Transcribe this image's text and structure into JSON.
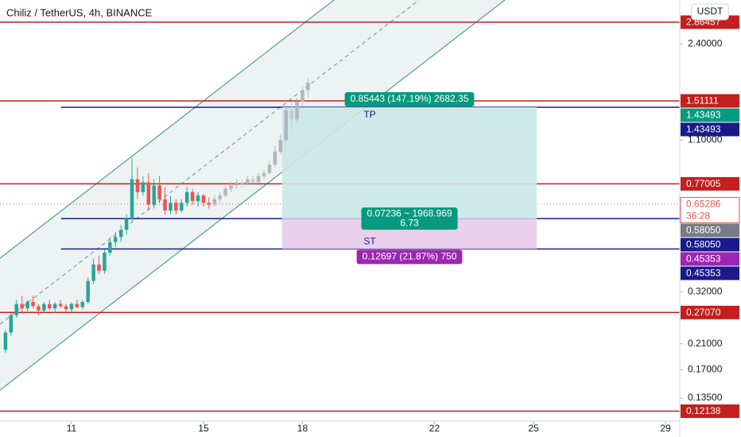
{
  "chart_data": {
    "type": "candlestick",
    "title": "Chiliz / TetherUS, 4h, BINANCE",
    "currency": "USDT",
    "log_scale": true,
    "ylim": [
      0.112,
      3.43
    ],
    "yticks": [
      {
        "value": 2.4,
        "label": "2.40000"
      },
      {
        "value": 1.1,
        "label": "1.10000"
      },
      {
        "value": 0.32,
        "label": "0.32000"
      },
      {
        "value": 0.21,
        "label": "0.21000"
      },
      {
        "value": 0.17,
        "label": "0.17000"
      },
      {
        "value": 0.135,
        "label": "0.13500"
      }
    ],
    "xlim": [
      -1,
      122.6
    ],
    "xticks": [
      {
        "value": 12,
        "label": "11"
      },
      {
        "value": 36,
        "label": "15"
      },
      {
        "value": 54,
        "label": "18"
      },
      {
        "value": 78,
        "label": "22"
      },
      {
        "value": 96,
        "label": "25"
      },
      {
        "value": 120,
        "label": "29"
      }
    ],
    "series": [
      {
        "color_up": "#26a69a",
        "color_down": "#ef5350",
        "x": [
          0,
          1,
          2,
          3,
          4,
          5,
          6,
          7,
          8,
          9,
          10,
          11,
          12,
          13,
          14,
          15,
          16,
          17,
          18,
          19,
          20,
          21,
          22,
          23,
          24,
          25,
          26,
          27,
          28,
          29,
          30,
          31,
          32,
          33,
          34,
          35,
          36,
          37
        ],
        "open": [
          0.2,
          0.23,
          0.265,
          0.29,
          0.28,
          0.295,
          0.285,
          0.275,
          0.29,
          0.28,
          0.29,
          0.285,
          0.278,
          0.29,
          0.283,
          0.295,
          0.35,
          0.4,
          0.38,
          0.44,
          0.48,
          0.5,
          0.53,
          0.58,
          0.8,
          0.72,
          0.78,
          0.65,
          0.76,
          0.68,
          0.62,
          0.66,
          0.62,
          0.66,
          0.72,
          0.67,
          0.7,
          0.66
        ],
        "high": [
          0.235,
          0.27,
          0.3,
          0.31,
          0.3,
          0.31,
          0.29,
          0.295,
          0.3,
          0.295,
          0.3,
          0.29,
          0.295,
          0.3,
          0.3,
          0.36,
          0.42,
          0.43,
          0.45,
          0.5,
          0.52,
          0.55,
          0.6,
          0.95,
          0.88,
          0.82,
          0.84,
          0.8,
          0.82,
          0.75,
          0.7,
          0.68,
          0.68,
          0.75,
          0.74,
          0.72,
          0.71,
          0.69
        ],
        "low": [
          0.195,
          0.225,
          0.26,
          0.27,
          0.27,
          0.28,
          0.265,
          0.27,
          0.275,
          0.27,
          0.28,
          0.27,
          0.272,
          0.28,
          0.278,
          0.29,
          0.34,
          0.37,
          0.37,
          0.43,
          0.46,
          0.48,
          0.51,
          0.57,
          0.68,
          0.7,
          0.62,
          0.63,
          0.66,
          0.6,
          0.6,
          0.6,
          0.61,
          0.64,
          0.65,
          0.64,
          0.64,
          0.63
        ],
        "close": [
          0.23,
          0.265,
          0.29,
          0.28,
          0.295,
          0.285,
          0.275,
          0.29,
          0.28,
          0.29,
          0.285,
          0.278,
          0.29,
          0.283,
          0.295,
          0.35,
          0.4,
          0.38,
          0.44,
          0.48,
          0.5,
          0.53,
          0.58,
          0.8,
          0.72,
          0.78,
          0.65,
          0.76,
          0.68,
          0.62,
          0.66,
          0.62,
          0.66,
          0.72,
          0.67,
          0.7,
          0.66,
          0.65
        ]
      },
      {
        "color_up": "#b2b5be",
        "color_down": "#c7c9cf",
        "x": [
          38,
          39,
          40,
          41,
          42,
          43,
          44,
          45,
          46,
          47,
          48,
          49,
          50,
          51,
          52,
          53,
          54,
          55
        ],
        "open": [
          0.65,
          0.68,
          0.7,
          0.74,
          0.76,
          0.78,
          0.77,
          0.8,
          0.78,
          0.82,
          0.84,
          0.9,
          1.0,
          1.1,
          1.4,
          1.3,
          1.5,
          1.65
        ],
        "high": [
          0.7,
          0.72,
          0.76,
          0.78,
          0.8,
          0.8,
          0.82,
          0.82,
          0.84,
          0.86,
          0.93,
          1.05,
          1.15,
          1.45,
          1.5,
          1.55,
          1.7,
          1.82
        ],
        "low": [
          0.64,
          0.66,
          0.69,
          0.72,
          0.74,
          0.75,
          0.76,
          0.77,
          0.77,
          0.8,
          0.83,
          0.88,
          0.98,
          1.08,
          1.2,
          1.28,
          1.45,
          1.55
        ],
        "close": [
          0.68,
          0.7,
          0.74,
          0.76,
          0.78,
          0.77,
          0.8,
          0.78,
          0.82,
          0.84,
          0.9,
          1.0,
          1.1,
          1.4,
          1.3,
          1.5,
          1.65,
          1.75
        ]
      }
    ],
    "levels": [
      {
        "value": 2.86457,
        "color": "#c41e1e"
      },
      {
        "value": 1.51111,
        "color": "#c41e1e"
      },
      {
        "value": 1.43493,
        "color": "#1a1a8c",
        "x_start": 10.1
      },
      {
        "value": 0.77005,
        "color": "#c41e1e"
      },
      {
        "value": 0.65286,
        "color": "#ef5350",
        "dotted": true
      },
      {
        "value": 0.5805,
        "color": "#1a1a8c",
        "x_start": 10.1
      },
      {
        "value": 0.45353,
        "color": "#1a1a8c",
        "x_start": 10.1
      },
      {
        "value": 0.2707,
        "color": "#c41e1e"
      },
      {
        "value": 0.12138,
        "color": "#c41e1e"
      }
    ],
    "price_labels": [
      {
        "value": 2.86457,
        "label": "2.86457",
        "bg": "#c41e1e",
        "fg": "#ffffff"
      },
      {
        "value": 1.51111,
        "label": "1.51111",
        "bg": "#c41e1e",
        "fg": "#ffffff"
      },
      {
        "value": 1.43493,
        "label": "1.43493",
        "bg": "#089981",
        "fg": "#ffffff"
      },
      {
        "value": 1.43493,
        "label": "1.43493",
        "bg": "#1a1a8c",
        "fg": "#ffffff"
      },
      {
        "value": 0.77005,
        "label": "0.77005",
        "bg": "#c41e1e",
        "fg": "#ffffff"
      },
      {
        "value": 0.65286,
        "label": "0.65286",
        "bg": "#ffffff",
        "fg": "#ef5350",
        "countdown": "36:28"
      },
      {
        "value": 0.5805,
        "label": "0.58050",
        "bg": "#787b86",
        "fg": "#ffffff"
      },
      {
        "value": 0.5805,
        "label": "0.58050",
        "bg": "#1a1a8c",
        "fg": "#ffffff"
      },
      {
        "value": 0.45353,
        "label": "0.45353",
        "bg": "#9c27b0",
        "fg": "#ffffff"
      },
      {
        "value": 0.45353,
        "label": "0.45353",
        "bg": "#1a1a8c",
        "fg": "#ffffff"
      },
      {
        "value": 0.2707,
        "label": "0.27070",
        "bg": "#c41e1e",
        "fg": "#ffffff"
      },
      {
        "value": 0.12138,
        "label": "0.12138",
        "bg": "#c41e1e",
        "fg": "#ffffff"
      }
    ],
    "position": {
      "x": [
        50.3,
        96.6
      ],
      "entry": 0.5805,
      "target": 1.43493,
      "stop": 0.45353,
      "target_text": "0.85443 (147.19%) 2682.35",
      "target_label": "TP",
      "stats_text": "0.07236 ~ 1968.969",
      "ratio_text": "6.73",
      "stop_label": "ST",
      "stop_text": "0.12697 (21.87%) 750",
      "profit_color": "#089981",
      "loss_color": "#9c27b0",
      "profit_fill": "#c9e8e4",
      "loss_fill": "#e8cbea"
    }
  }
}
